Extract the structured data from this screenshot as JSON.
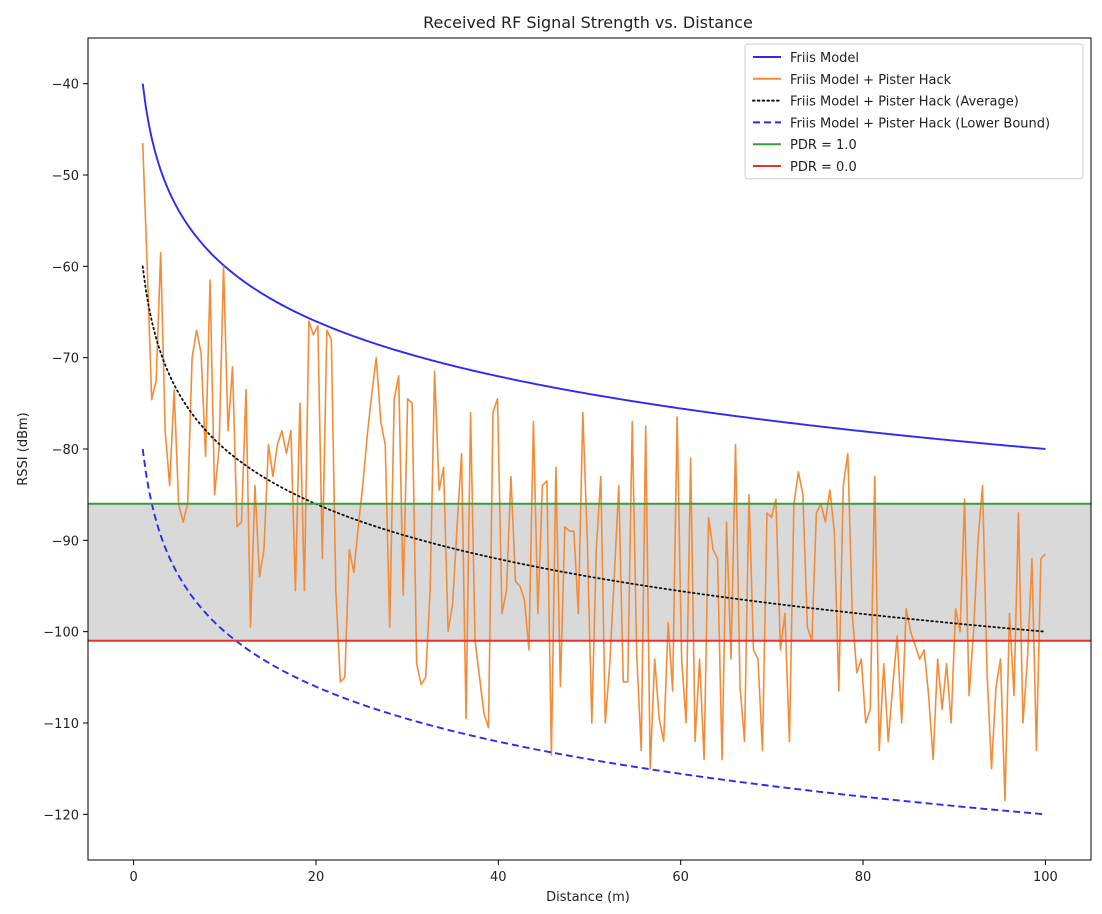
{
  "chart_data": {
    "type": "line",
    "title": "Received RF Signal Strength vs. Distance",
    "xlabel": "Distance (m)",
    "ylabel": "RSSI (dBm)",
    "xlim": [
      -5,
      105
    ],
    "ylim": [
      -125,
      -35
    ],
    "xticks": [
      0,
      20,
      40,
      60,
      80,
      100
    ],
    "yticks": [
      -40,
      -50,
      -60,
      -70,
      -80,
      -90,
      -100,
      -110,
      -120
    ],
    "xtick_labels": [
      "0",
      "20",
      "40",
      "60",
      "80",
      "100"
    ],
    "ytick_labels": [
      "−40",
      "−50",
      "−60",
      "−70",
      "−80",
      "−90",
      "−100",
      "−110",
      "−120"
    ],
    "grid": false,
    "legend_position": "top-right",
    "shaded_band": {
      "y_from": -101,
      "y_to": -86,
      "color": "#d9d9d9"
    },
    "series": [
      {
        "name": "Friis Model",
        "style": "solid",
        "color": "#2b2bf5",
        "model": "log-distance",
        "d0": 1,
        "rssi_at_d0": -40,
        "exponent": 2,
        "x_range": [
          1,
          100
        ]
      },
      {
        "name": "Friis Model + Pister Hack",
        "style": "solid",
        "color": "#f28c38",
        "x_range": [
          1,
          100
        ],
        "values": [
          -46.5,
          -60.0,
          -74.6,
          -72.5,
          -58.5,
          -78.0,
          -84.0,
          -73.5,
          -86.0,
          -88.0,
          -86.0,
          -70.0,
          -67.0,
          -69.5,
          -80.8,
          -61.5,
          -85.0,
          -80.0,
          -60.0,
          -78.0,
          -71.0,
          -88.5,
          -88.0,
          -73.5,
          -99.5,
          -84.0,
          -94.0,
          -91.0,
          -79.5,
          -83.0,
          -79.5,
          -78.0,
          -80.5,
          -78.0,
          -95.5,
          -75.0,
          -95.5,
          -66.0,
          -67.5,
          -66.5,
          -92.0,
          -67.0,
          -68.0,
          -95.5,
          -105.5,
          -105.0,
          -91.0,
          -93.5,
          -88.5,
          -84.0,
          -78.5,
          -74.0,
          -70.0,
          -77.0,
          -79.5,
          -99.5,
          -74.5,
          -72.0,
          -96.0,
          -74.5,
          -75.0,
          -103.5,
          -105.8,
          -105.0,
          -95.5,
          -71.5,
          -84.5,
          -82.0,
          -100.0,
          -97.0,
          -88.5,
          -80.5,
          -109.5,
          -76.0,
          -101.0,
          -105.0,
          -109.0,
          -110.5,
          -76.0,
          -74.5,
          -98.0,
          -95.5,
          -83.0,
          -94.5,
          -95.0,
          -96.5,
          -102.0,
          -77.0,
          -98.0,
          -84.0,
          -83.5,
          -113.5,
          -82.0,
          -106.0,
          -88.5,
          -89.0,
          -89.0,
          -98.0,
          -76.0,
          -90.0,
          -110.0,
          -91.0,
          -83.0,
          -110.0,
          -103.5,
          -94.0,
          -84.0,
          -105.5,
          -105.5,
          -77.0,
          -102.5,
          -113.0,
          -77.5,
          -115.0,
          -103.0,
          -109.5,
          -112.0,
          -99.0,
          -106.5,
          -76.5,
          -103.0,
          -110.0,
          -81.0,
          -112.0,
          -103.0,
          -114.0,
          -87.5,
          -91.0,
          -92.0,
          -114.0,
          -88.0,
          -103.0,
          -79.5,
          -106.0,
          -112.0,
          -85.0,
          -102.0,
          -103.0,
          -113.0,
          -87.0,
          -87.5,
          -85.5,
          -102.0,
          -98.0,
          -112.0,
          -86.0,
          -82.5,
          -85.0,
          -99.5,
          -101.0,
          -87.0,
          -86.0,
          -88.0,
          -84.5,
          -89.0,
          -106.5,
          -84.0,
          -80.5,
          -98.0,
          -104.5,
          -103.0,
          -110.0,
          -108.5,
          -83.0,
          -113.0,
          -103.5,
          -112.0,
          -106.0,
          -100.5,
          -110.0,
          -97.5,
          -100.0,
          -101.5,
          -103.0,
          -102.0,
          -107.0,
          -114.0,
          -103.0,
          -108.5,
          -103.5,
          -110.0,
          -97.5,
          -100.0,
          -85.5,
          -107.0,
          -100.0,
          -90.0,
          -84.0,
          -104.5,
          -115.0,
          -106.0,
          -103.0,
          -118.5,
          -98.0,
          -107.0,
          -87.0,
          -110.0,
          -103.0,
          -92.0,
          -113.0,
          -92.0,
          -91.5
        ]
      },
      {
        "name": "Friis Model + Pister Hack (Average)",
        "style": "dotted",
        "color": "#111111",
        "model": "log-distance",
        "d0": 1,
        "rssi_at_d0": -60,
        "exponent": 2,
        "x_range": [
          1,
          100
        ]
      },
      {
        "name": "Friis Model + Pister Hack (Lower Bound)",
        "style": "dashed",
        "color": "#2b2bf5",
        "model": "log-distance",
        "d0": 1,
        "rssi_at_d0": -80,
        "exponent": 2,
        "x_range": [
          1,
          100
        ]
      },
      {
        "name": "PDR = 1.0",
        "style": "hline",
        "color": "#3a9b3a",
        "y": -86
      },
      {
        "name": "PDR = 0.0",
        "style": "hline",
        "color": "#e8302d",
        "y": -101
      }
    ]
  }
}
